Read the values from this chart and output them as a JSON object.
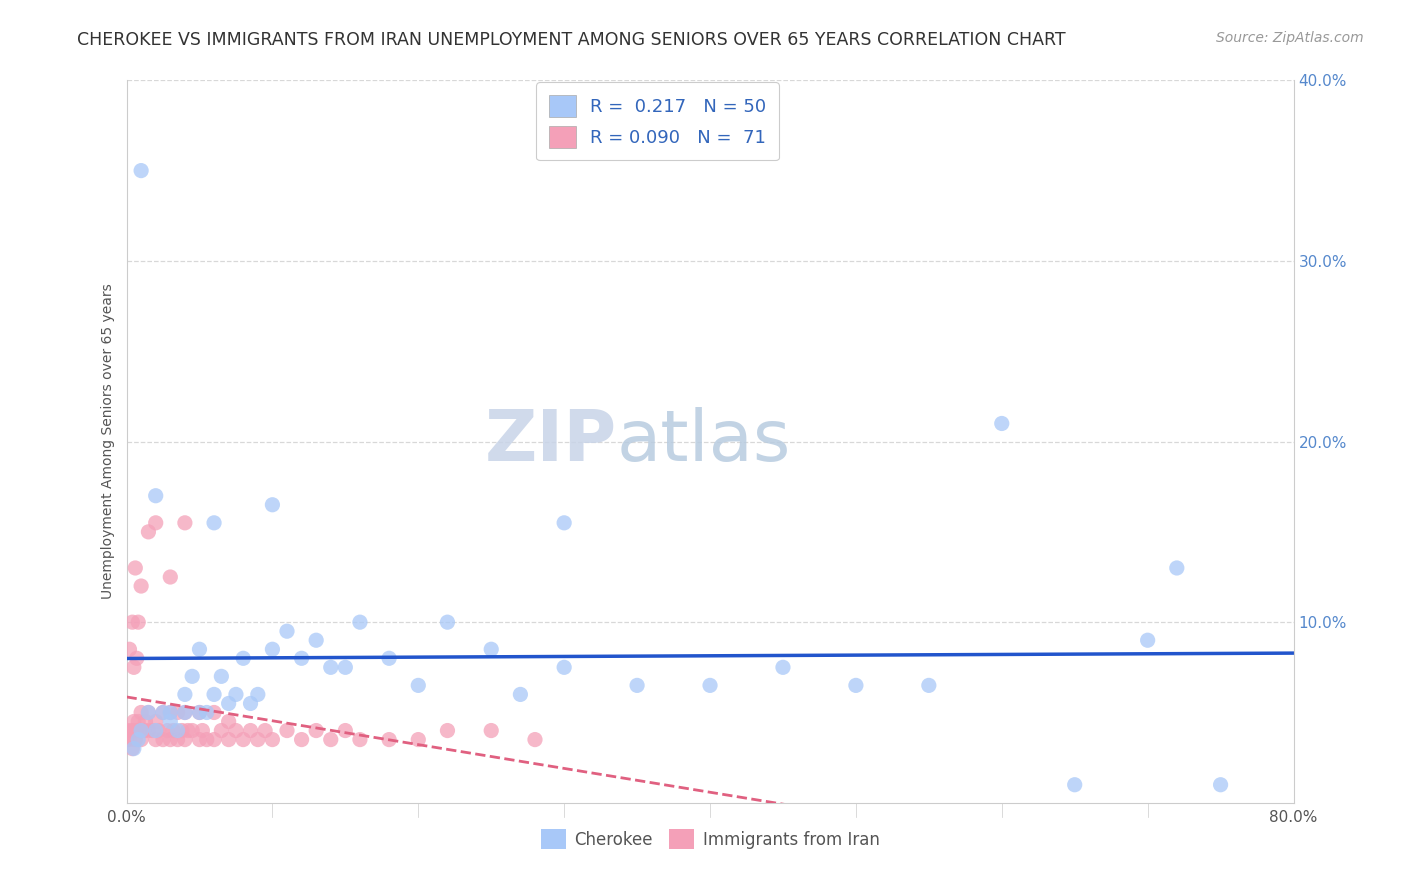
{
  "title": "CHEROKEE VS IMMIGRANTS FROM IRAN UNEMPLOYMENT AMONG SENIORS OVER 65 YEARS CORRELATION CHART",
  "source": "Source: ZipAtlas.com",
  "ylabel": "Unemployment Among Seniors over 65 years",
  "xlim": [
    0,
    0.8
  ],
  "ylim": [
    0,
    0.4
  ],
  "yticklabels_right": [
    "",
    "10.0%",
    "20.0%",
    "30.0%",
    "40.0%"
  ],
  "watermark_zip": "ZIP",
  "watermark_atlas": "atlas",
  "cherokee_color": "#a8c8f8",
  "iran_color": "#f4a0b8",
  "cherokee_line_color": "#2255cc",
  "iran_line_color": "#e06080",
  "background_color": "#ffffff",
  "grid_color": "#d8d8d8",
  "title_fontsize": 12.5,
  "axis_label_fontsize": 10,
  "tick_fontsize": 11,
  "source_fontsize": 10,
  "cherokee_x": [
    0.005,
    0.008,
    0.01,
    0.015,
    0.02,
    0.025,
    0.03,
    0.03,
    0.035,
    0.04,
    0.04,
    0.045,
    0.05,
    0.05,
    0.055,
    0.06,
    0.065,
    0.07,
    0.075,
    0.08,
    0.085,
    0.09,
    0.1,
    0.11,
    0.12,
    0.13,
    0.14,
    0.15,
    0.16,
    0.18,
    0.2,
    0.22,
    0.25,
    0.27,
    0.3,
    0.35,
    0.4,
    0.45,
    0.5,
    0.55,
    0.6,
    0.65,
    0.7,
    0.72,
    0.75,
    0.01,
    0.02,
    0.06,
    0.1,
    0.3
  ],
  "cherokee_y": [
    0.03,
    0.035,
    0.04,
    0.05,
    0.04,
    0.05,
    0.045,
    0.05,
    0.04,
    0.06,
    0.05,
    0.07,
    0.05,
    0.085,
    0.05,
    0.06,
    0.07,
    0.055,
    0.06,
    0.08,
    0.055,
    0.06,
    0.085,
    0.095,
    0.08,
    0.09,
    0.075,
    0.075,
    0.1,
    0.08,
    0.065,
    0.1,
    0.085,
    0.06,
    0.075,
    0.065,
    0.065,
    0.075,
    0.065,
    0.065,
    0.21,
    0.01,
    0.09,
    0.13,
    0.01,
    0.35,
    0.17,
    0.155,
    0.165,
    0.155
  ],
  "iran_x": [
    0.0,
    0.0,
    0.002,
    0.003,
    0.004,
    0.005,
    0.005,
    0.006,
    0.007,
    0.008,
    0.009,
    0.01,
    0.01,
    0.012,
    0.013,
    0.015,
    0.015,
    0.018,
    0.02,
    0.02,
    0.022,
    0.025,
    0.025,
    0.028,
    0.03,
    0.03,
    0.032,
    0.035,
    0.035,
    0.038,
    0.04,
    0.04,
    0.042,
    0.045,
    0.05,
    0.05,
    0.052,
    0.055,
    0.06,
    0.06,
    0.065,
    0.07,
    0.07,
    0.075,
    0.08,
    0.085,
    0.09,
    0.095,
    0.1,
    0.11,
    0.12,
    0.13,
    0.14,
    0.15,
    0.16,
    0.18,
    0.2,
    0.22,
    0.25,
    0.28,
    0.002,
    0.004,
    0.006,
    0.008,
    0.01,
    0.015,
    0.02,
    0.03,
    0.04,
    0.005,
    0.007
  ],
  "iran_y": [
    0.035,
    0.04,
    0.035,
    0.04,
    0.03,
    0.04,
    0.045,
    0.035,
    0.04,
    0.045,
    0.04,
    0.035,
    0.05,
    0.04,
    0.045,
    0.04,
    0.05,
    0.04,
    0.035,
    0.045,
    0.04,
    0.035,
    0.05,
    0.04,
    0.035,
    0.05,
    0.04,
    0.035,
    0.05,
    0.04,
    0.035,
    0.05,
    0.04,
    0.04,
    0.035,
    0.05,
    0.04,
    0.035,
    0.035,
    0.05,
    0.04,
    0.035,
    0.045,
    0.04,
    0.035,
    0.04,
    0.035,
    0.04,
    0.035,
    0.04,
    0.035,
    0.04,
    0.035,
    0.04,
    0.035,
    0.035,
    0.035,
    0.04,
    0.04,
    0.035,
    0.085,
    0.1,
    0.13,
    0.1,
    0.12,
    0.15,
    0.155,
    0.125,
    0.155,
    0.075,
    0.08
  ]
}
